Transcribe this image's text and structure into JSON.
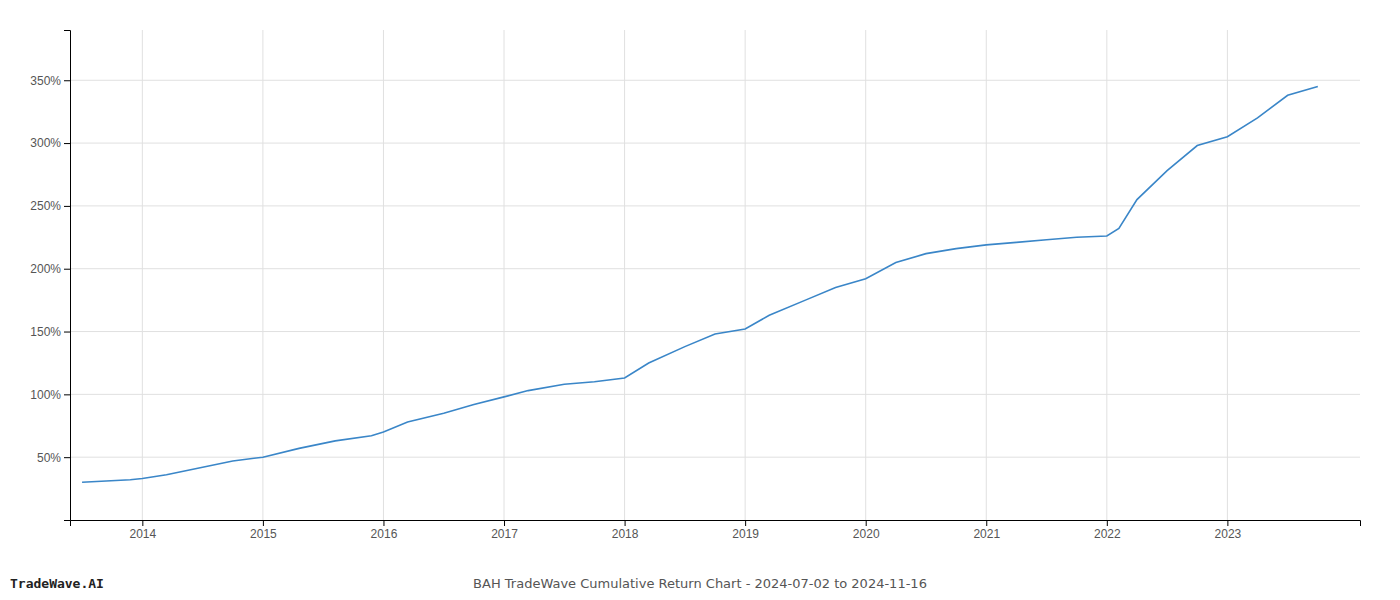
{
  "chart_data": {
    "type": "line",
    "title": "BAH TradeWave Cumulative Return Chart - 2024-07-02 to 2024-11-16",
    "annotations": [
      "TradeWave.AI"
    ],
    "color": "#3a86c8",
    "x": [
      2013.5,
      2013.7,
      2013.9,
      2014.0,
      2014.2,
      2014.5,
      2014.75,
      2015.0,
      2015.3,
      2015.6,
      2015.9,
      2016.0,
      2016.2,
      2016.5,
      2016.75,
      2017.0,
      2017.2,
      2017.5,
      2017.75,
      2018.0,
      2018.2,
      2018.5,
      2018.75,
      2019.0,
      2019.2,
      2019.5,
      2019.75,
      2020.0,
      2020.25,
      2020.5,
      2020.75,
      2021.0,
      2021.25,
      2021.5,
      2021.75,
      2022.0,
      2022.1,
      2022.25,
      2022.5,
      2022.75,
      2023.0,
      2023.25,
      2023.5,
      2023.75
    ],
    "values": [
      30,
      31,
      32,
      33,
      36,
      42,
      47,
      50,
      57,
      63,
      67,
      70,
      78,
      85,
      92,
      98,
      103,
      108,
      110,
      113,
      125,
      138,
      148,
      152,
      163,
      175,
      185,
      192,
      205,
      212,
      216,
      219,
      221,
      223,
      225,
      226,
      232,
      255,
      278,
      298,
      305,
      320,
      338,
      345
    ],
    "xlim": [
      2013.4,
      2024.1
    ],
    "ylim": [
      0,
      390
    ],
    "xticks": [
      2014,
      2015,
      2016,
      2017,
      2018,
      2019,
      2020,
      2021,
      2022,
      2023
    ],
    "yticks": [
      {
        "value": 50,
        "label": "50%"
      },
      {
        "value": 100,
        "label": "100%"
      },
      {
        "value": 150,
        "label": "150%"
      },
      {
        "value": 200,
        "label": "200%"
      },
      {
        "value": 250,
        "label": "250%"
      },
      {
        "value": 300,
        "label": "300%"
      },
      {
        "value": 350,
        "label": "350%"
      }
    ],
    "grid": true
  }
}
